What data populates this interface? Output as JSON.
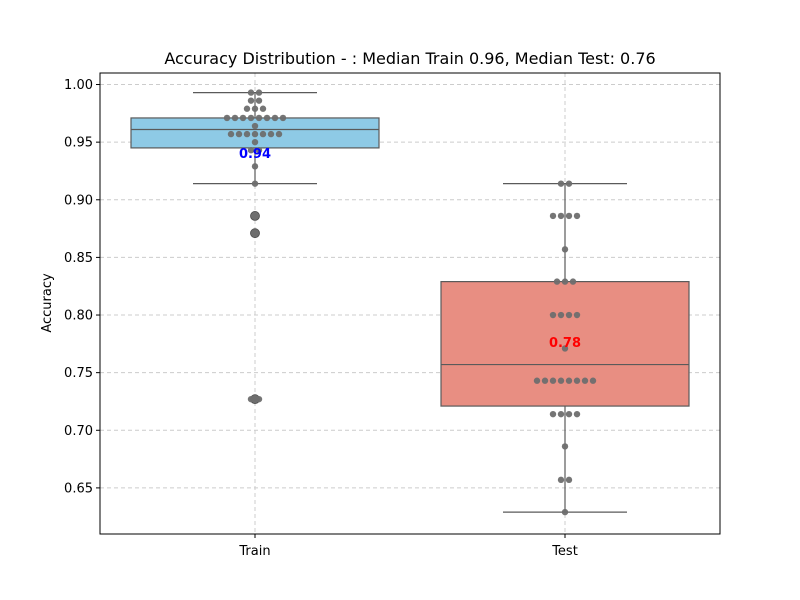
{
  "chart_data": {
    "type": "box",
    "title": "Accuracy Distribution - : Median Train 0.96, Median Test: 0.76",
    "xlabel": "",
    "ylabel": "Accuracy",
    "ylim": [
      0.61,
      1.01
    ],
    "yticks": [
      0.65,
      0.7,
      0.75,
      0.8,
      0.85,
      0.9,
      0.95,
      1.0
    ],
    "ytick_labels": [
      "0.65",
      "0.70",
      "0.75",
      "0.80",
      "0.85",
      "0.90",
      "0.95",
      "1.00"
    ],
    "grid": true,
    "categories": [
      "Train",
      "Test"
    ],
    "boxes": [
      {
        "category": "Train",
        "color": "#8ecae6",
        "q1": 0.945,
        "median": 0.961,
        "q3": 0.971,
        "whisker_low": 0.914,
        "whisker_high": 0.993,
        "outliers": [
          0.886,
          0.871,
          0.727
        ],
        "mean": 0.94,
        "mean_label": "0.94",
        "mean_label_color": "#0000ff",
        "points": [
          0.993,
          0.993,
          0.986,
          0.986,
          0.979,
          0.979,
          0.979,
          0.971,
          0.971,
          0.971,
          0.971,
          0.971,
          0.971,
          0.971,
          0.971,
          0.964,
          0.957,
          0.957,
          0.957,
          0.957,
          0.957,
          0.957,
          0.957,
          0.95,
          0.943,
          0.943,
          0.929,
          0.914,
          0.886,
          0.871,
          0.727,
          0.727
        ]
      },
      {
        "category": "Test",
        "color": "#e88e82",
        "q1": 0.721,
        "median": 0.757,
        "q3": 0.829,
        "whisker_low": 0.629,
        "whisker_high": 0.914,
        "outliers": [],
        "mean": 0.776,
        "mean_label": "0.78",
        "mean_label_color": "#ff0000",
        "points": [
          0.914,
          0.914,
          0.886,
          0.886,
          0.886,
          0.886,
          0.857,
          0.829,
          0.829,
          0.829,
          0.8,
          0.8,
          0.8,
          0.8,
          0.771,
          0.743,
          0.743,
          0.743,
          0.743,
          0.743,
          0.743,
          0.743,
          0.743,
          0.714,
          0.714,
          0.714,
          0.714,
          0.686,
          0.657,
          0.657,
          0.629
        ]
      }
    ]
  },
  "colors": {
    "box_edge": "#5a5a5a",
    "point": "#6e6e6e",
    "grid": "#cccccc"
  }
}
